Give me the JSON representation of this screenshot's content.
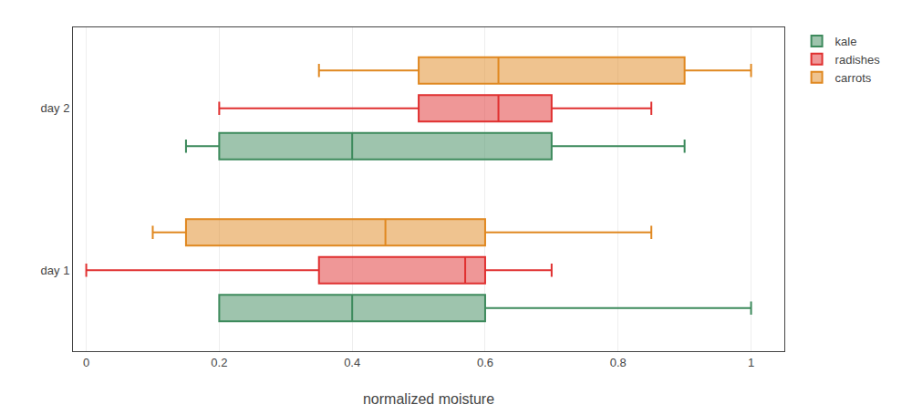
{
  "chart_data": {
    "type": "box",
    "orientation": "horizontal",
    "xlabel": "normalized moisture",
    "categories": [
      "day 1",
      "day 2"
    ],
    "xlim": [
      -0.02,
      1.05
    ],
    "xticks": [
      0,
      0.2,
      0.4,
      0.6,
      0.8,
      1
    ],
    "grid": true,
    "legend": "right",
    "series": [
      {
        "name": "kale",
        "color": "#3d8a5c",
        "whislo": [
          0.2,
          0.15
        ],
        "q1": [
          0.2,
          0.2
        ],
        "med": [
          0.4,
          0.4
        ],
        "q3": [
          0.6,
          0.7
        ],
        "whishi": [
          1.0,
          0.9
        ]
      },
      {
        "name": "radishes",
        "color": "#e03030",
        "whislo": [
          0.0,
          0.2
        ],
        "q1": [
          0.35,
          0.5
        ],
        "med": [
          0.57,
          0.62
        ],
        "q3": [
          0.6,
          0.7
        ],
        "whishi": [
          0.7,
          0.85
        ]
      },
      {
        "name": "carrots",
        "color": "#e08820",
        "whislo": [
          0.1,
          0.35
        ],
        "q1": [
          0.15,
          0.5
        ],
        "med": [
          0.45,
          0.62
        ],
        "q3": [
          0.6,
          0.9
        ],
        "whishi": [
          0.85,
          1.0
        ]
      }
    ]
  }
}
